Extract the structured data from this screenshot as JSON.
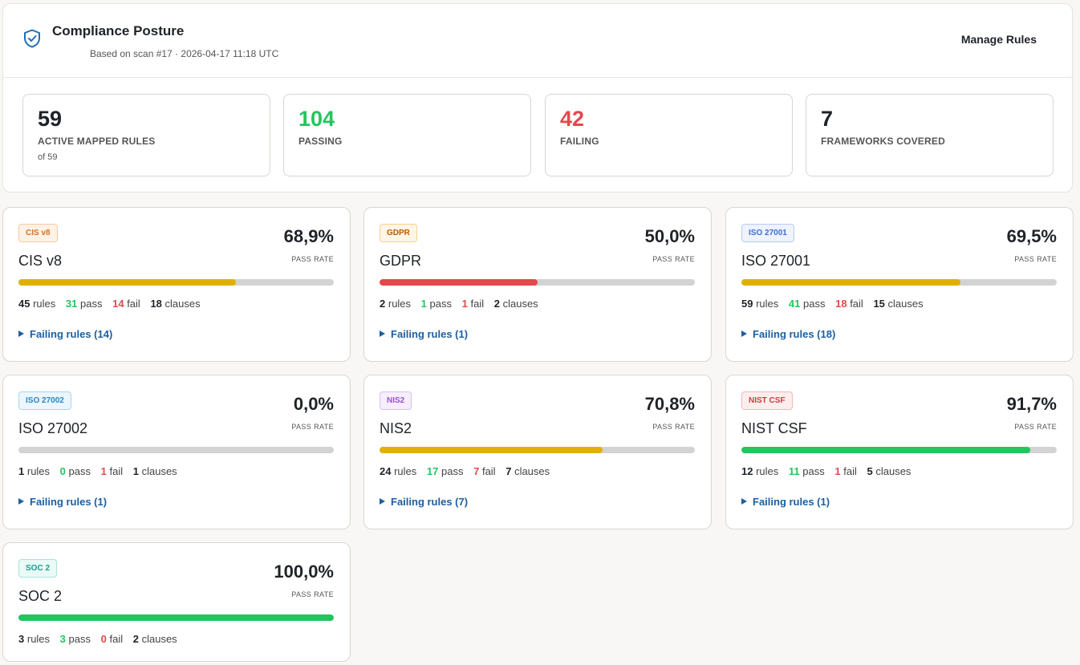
{
  "header": {
    "title": "Compliance Posture",
    "subtitle": "Based on scan #17 · 2026-04-17 11:18 UTC",
    "manage_label": "Manage Rules",
    "icon": "shield-check-icon"
  },
  "stats": [
    {
      "value": "59",
      "label": "ACTIVE MAPPED RULES",
      "sub": "of 59",
      "color": "#1f2328"
    },
    {
      "value": "104",
      "label": "PASSING",
      "sub": "",
      "color": "#22c55e"
    },
    {
      "value": "42",
      "label": "FAILING",
      "sub": "",
      "color": "#e5484d"
    },
    {
      "value": "7",
      "label": "FRAMEWORKS COVERED",
      "sub": "",
      "color": "#1f2328"
    }
  ],
  "frameworks": [
    {
      "badge": "CIS v8",
      "name": "CIS v8",
      "pct": "68,9%",
      "rate": 0.689,
      "bar_color": "#e0b000",
      "badge_fg": "#d9731f",
      "badge_bg": "#fff3e8",
      "badge_border": "#f7c9a0",
      "rules": "45",
      "pass": "31",
      "fail": "14",
      "clauses": "18",
      "failing": "Failing rules (14)"
    },
    {
      "badge": "GDPR",
      "name": "GDPR",
      "pct": "50,0%",
      "rate": 0.5,
      "bar_color": "#e5484d",
      "badge_fg": "#b85c00",
      "badge_bg": "#fff6e5",
      "badge_border": "#f3d28e",
      "rules": "2",
      "pass": "1",
      "fail": "1",
      "clauses": "2",
      "failing": "Failing rules (1)"
    },
    {
      "badge": "ISO 27001",
      "name": "ISO 27001",
      "pct": "69,5%",
      "rate": 0.695,
      "bar_color": "#e0b000",
      "badge_fg": "#3b6fd0",
      "badge_bg": "#eef3fd",
      "badge_border": "#b9ccf2",
      "rules": "59",
      "pass": "41",
      "fail": "18",
      "clauses": "15",
      "failing": "Failing rules (18)"
    },
    {
      "badge": "ISO 27002",
      "name": "ISO 27002",
      "pct": "0,0%",
      "rate": 0.0,
      "bar_color": "#d3d3d3",
      "badge_fg": "#2a87c8",
      "badge_bg": "#ebf6fd",
      "badge_border": "#a9d6f2",
      "rules": "1",
      "pass": "0",
      "fail": "1",
      "clauses": "1",
      "failing": "Failing rules (1)"
    },
    {
      "badge": "NIS2",
      "name": "NIS2",
      "pct": "70,8%",
      "rate": 0.708,
      "bar_color": "#e0b000",
      "badge_fg": "#9b4fd3",
      "badge_bg": "#f6eefd",
      "badge_border": "#d9bff2",
      "rules": "24",
      "pass": "17",
      "fail": "7",
      "clauses": "7",
      "failing": "Failing rules (7)"
    },
    {
      "badge": "NIST CSF",
      "name": "NIST CSF",
      "pct": "91,7%",
      "rate": 0.917,
      "bar_color": "#22c55e",
      "badge_fg": "#d33a3f",
      "badge_bg": "#fdeeee",
      "badge_border": "#f3b8ba",
      "rules": "12",
      "pass": "11",
      "fail": "1",
      "clauses": "5",
      "failing": "Failing rules (1)"
    },
    {
      "badge": "SOC 2",
      "name": "SOC 2",
      "pct": "100,0%",
      "rate": 1.0,
      "bar_color": "#22c55e",
      "badge_fg": "#1a9c8c",
      "badge_bg": "#eafaf6",
      "badge_border": "#a6e4d8",
      "rules": "3",
      "pass": "3",
      "fail": "0",
      "clauses": "2",
      "failing": ""
    }
  ],
  "labels": {
    "pass_rate": "PASS RATE",
    "rules": "rules",
    "pass": "pass",
    "fail": "fail",
    "clauses": "clauses"
  }
}
